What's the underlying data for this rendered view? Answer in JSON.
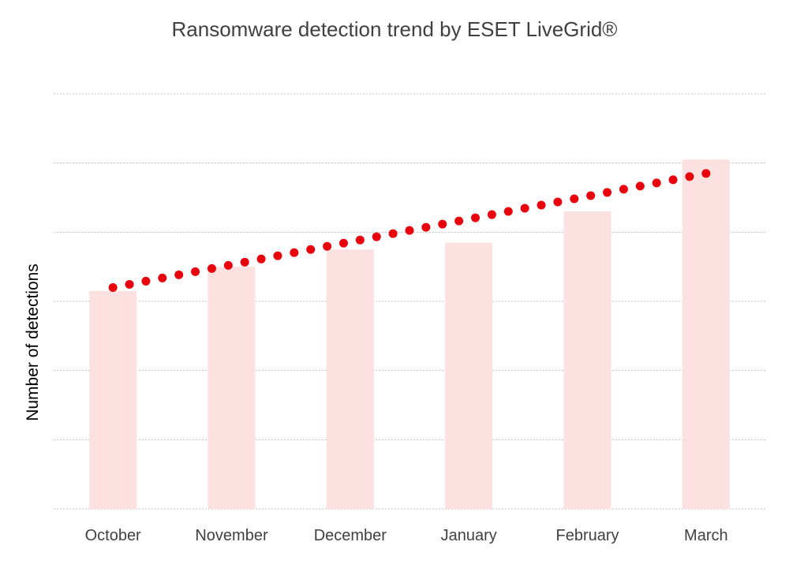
{
  "chart_data": {
    "type": "bar",
    "title": "Ransomware detection trend by ESET LiveGrid®",
    "xlabel": "",
    "ylabel": "Number of detections",
    "categories": [
      "October",
      "November",
      "December",
      "January",
      "February",
      "March"
    ],
    "values": [
      3.15,
      3.5,
      3.75,
      3.85,
      4.3,
      5.05
    ],
    "ylim": [
      0,
      6
    ],
    "grid": true,
    "legend": "none",
    "y_tick_labels_shown": false,
    "trendline": {
      "style": "dotted",
      "color": "#e8000c",
      "start": 3.2,
      "end": 4.85
    },
    "colors": {
      "bar": "#fde0e0",
      "trend": "#e8000c",
      "grid": "#bfbfbf"
    }
  }
}
